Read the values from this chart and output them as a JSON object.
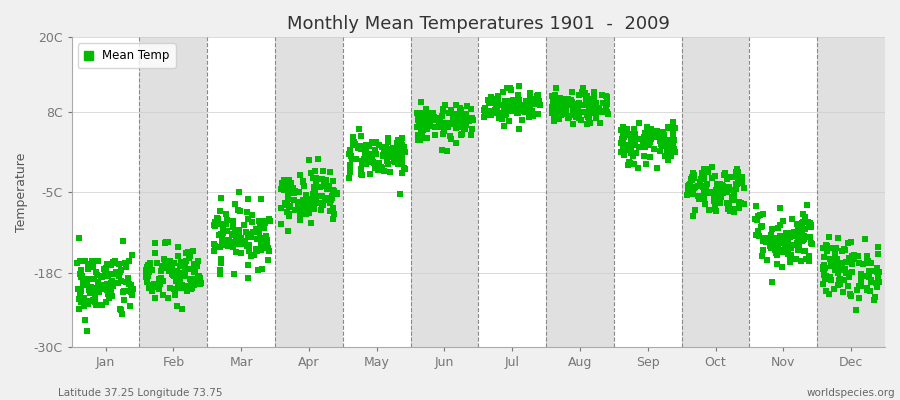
{
  "title": "Monthly Mean Temperatures 1901  -  2009",
  "ylabel": "Temperature",
  "xlabel_labels": [
    "Jan",
    "Feb",
    "Mar",
    "Apr",
    "May",
    "Jun",
    "Jul",
    "Aug",
    "Sep",
    "Oct",
    "Nov",
    "Dec"
  ],
  "ytick_labels": [
    "20C",
    "8C",
    "-5C",
    "-18C",
    "-30C"
  ],
  "ytick_values": [
    20,
    8,
    -5,
    -18,
    -30
  ],
  "ylim": [
    -30,
    20
  ],
  "bg_color": "#f0f0f0",
  "band_color_odd": "#ffffff",
  "band_color_even": "#e0e0e0",
  "dot_color": "#00bb00",
  "dot_size": 18,
  "legend_label": "Mean Temp",
  "subtitle_left": "Latitude 37.25 Longitude 73.75",
  "subtitle_right": "worldspecies.org",
  "years": 109,
  "monthly_means": [
    -20.0,
    -18.5,
    -12.0,
    -5.5,
    1.0,
    6.0,
    9.0,
    8.5,
    3.0,
    -4.5,
    -12.5,
    -17.5
  ],
  "monthly_stds": [
    2.8,
    2.5,
    2.5,
    2.2,
    1.8,
    1.5,
    1.3,
    1.3,
    1.8,
    2.0,
    2.5,
    2.5
  ]
}
